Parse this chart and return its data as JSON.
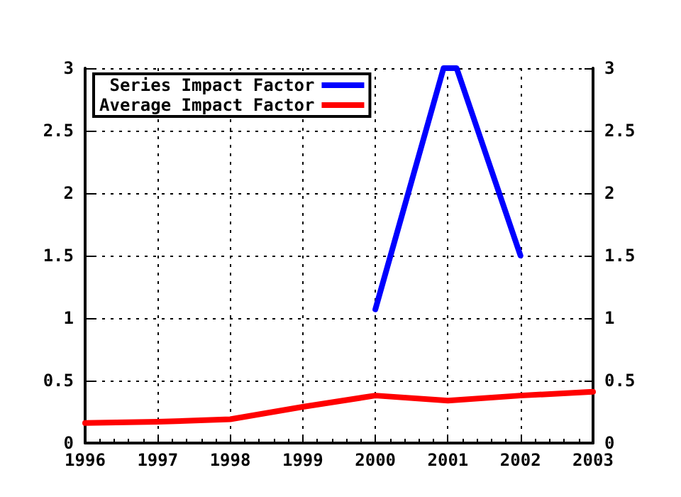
{
  "chart_data": {
    "type": "line",
    "x": [
      1996,
      1997,
      1998,
      1999,
      2000,
      2001,
      2002,
      2003
    ],
    "series": [
      {
        "name": "Series Impact Factor",
        "color": "#0000ff",
        "x": [
          2000,
          2000.94,
          2001.12,
          2002
        ],
        "values": [
          1.07,
          3,
          3,
          1.5
        ]
      },
      {
        "name": "Average Impact Factor",
        "color": "#ff0000",
        "values": [
          0.16,
          0.17,
          0.19,
          0.29,
          0.38,
          0.34,
          0.38,
          0.41
        ]
      }
    ],
    "xlim": [
      1996,
      2003
    ],
    "xticks": [
      1996,
      1997,
      1998,
      1999,
      2000,
      2001,
      2002,
      2003
    ],
    "ylim": [
      0,
      3
    ],
    "yticks": [
      0,
      0.5,
      1,
      1.5,
      2,
      2.5,
      3
    ],
    "y2lim": [
      0,
      3
    ],
    "y2ticks": [
      0,
      0.5,
      1,
      1.5,
      2,
      2.5,
      3
    ],
    "grid": true,
    "legend": "top left",
    "marker": "none",
    "line_style": "solid"
  }
}
